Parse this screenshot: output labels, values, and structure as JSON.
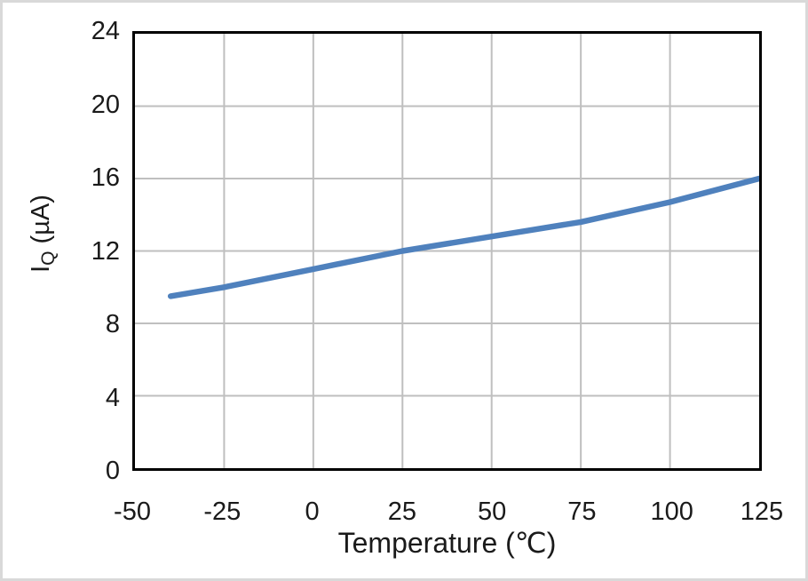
{
  "chart_data": {
    "type": "line",
    "title": "",
    "xlabel": "Temperature (℃)",
    "ylabel_base": "I",
    "ylabel_sub": "Q",
    "ylabel_unit": " (µA)",
    "x": [
      -40,
      -25,
      0,
      25,
      50,
      75,
      100,
      125
    ],
    "y": [
      9.5,
      10.0,
      11.0,
      12.0,
      12.8,
      13.6,
      14.7,
      16.0
    ],
    "xlim": [
      -50,
      125
    ],
    "ylim": [
      0,
      24
    ],
    "x_ticks": [
      -50,
      -25,
      0,
      25,
      50,
      75,
      100,
      125
    ],
    "y_ticks": [
      0,
      4,
      8,
      12,
      16,
      20,
      24
    ],
    "grid": true,
    "legend": "none",
    "colors": {
      "line": "#4f81bd",
      "grid": "#bfbfbf",
      "axis_frame": "#000000",
      "canvas_border": "#d9d9d9",
      "text": "#1a1a1a"
    }
  }
}
